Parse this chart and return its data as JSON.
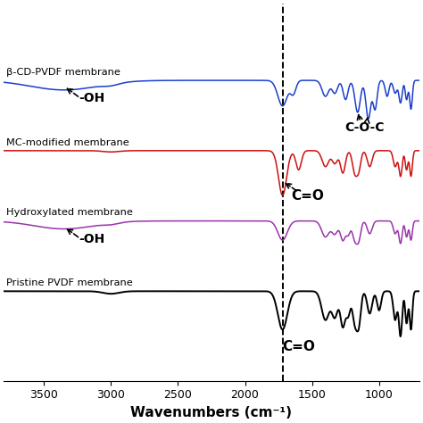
{
  "xlabel": "Wavenumbers (cm⁻¹)",
  "xlim": [
    3800,
    700
  ],
  "colors": [
    "#000000",
    "#9933aa",
    "#cc1111",
    "#1a3fcc"
  ],
  "labels": [
    "Pristine PVDF membrane",
    "Hydroxylated membrane",
    "MC-modified membrane",
    "β-CD-PVDF membrane"
  ],
  "dashed_line_x": 1720,
  "background_color": "#ffffff",
  "annotation_fontsize": 10,
  "offsets": [
    0.0,
    0.22,
    0.44,
    0.66
  ]
}
